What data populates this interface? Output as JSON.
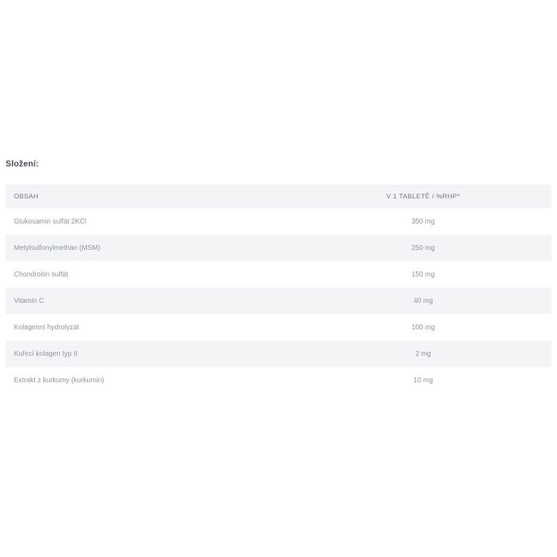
{
  "page": {
    "title": "Složení:"
  },
  "table": {
    "columns": [
      {
        "label": "OBSAH"
      },
      {
        "label": "V 1 TABLETĚ / %RHP*"
      }
    ],
    "rows": [
      {
        "label": "Glukosamin sulfát 2KCl",
        "value": "350 mg"
      },
      {
        "label": "Metylsulfonylmethan (MSM)",
        "value": "250 mg"
      },
      {
        "label": "Chondroitin sulfát",
        "value": "150 mg"
      },
      {
        "label": "Vitamin C",
        "value": "40 mg"
      },
      {
        "label": "Kolagenní hydrolyzát",
        "value": "100 mg"
      },
      {
        "label": "Kuřecí kolagen typ II",
        "value": "2 mg"
      },
      {
        "label": "Extrakt z kurkumy (kurkumin)",
        "value": "10 mg"
      }
    ]
  }
}
